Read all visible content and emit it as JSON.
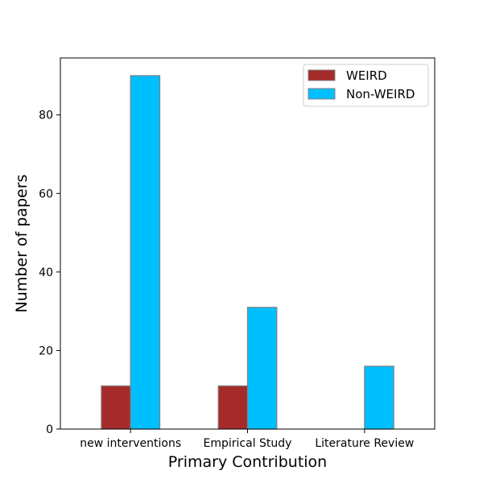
{
  "chart_data": {
    "type": "bar",
    "title": "",
    "xlabel": "Primary Contribution",
    "ylabel": "Number of papers",
    "categories": [
      "new interventions",
      "Empirical Study",
      "Literature Review"
    ],
    "series": [
      {
        "name": "WEIRD",
        "values": [
          11,
          11,
          0
        ],
        "color": "#a52a2a"
      },
      {
        "name": "Non-WEIRD",
        "values": [
          90,
          31,
          16
        ],
        "color": "#00bfff"
      }
    ],
    "ylim": [
      0,
      94.5
    ],
    "yticks": [
      0,
      20,
      40,
      60,
      80
    ],
    "grid": false,
    "legend_position": "top-right",
    "bar_edge_color": "#808080"
  }
}
